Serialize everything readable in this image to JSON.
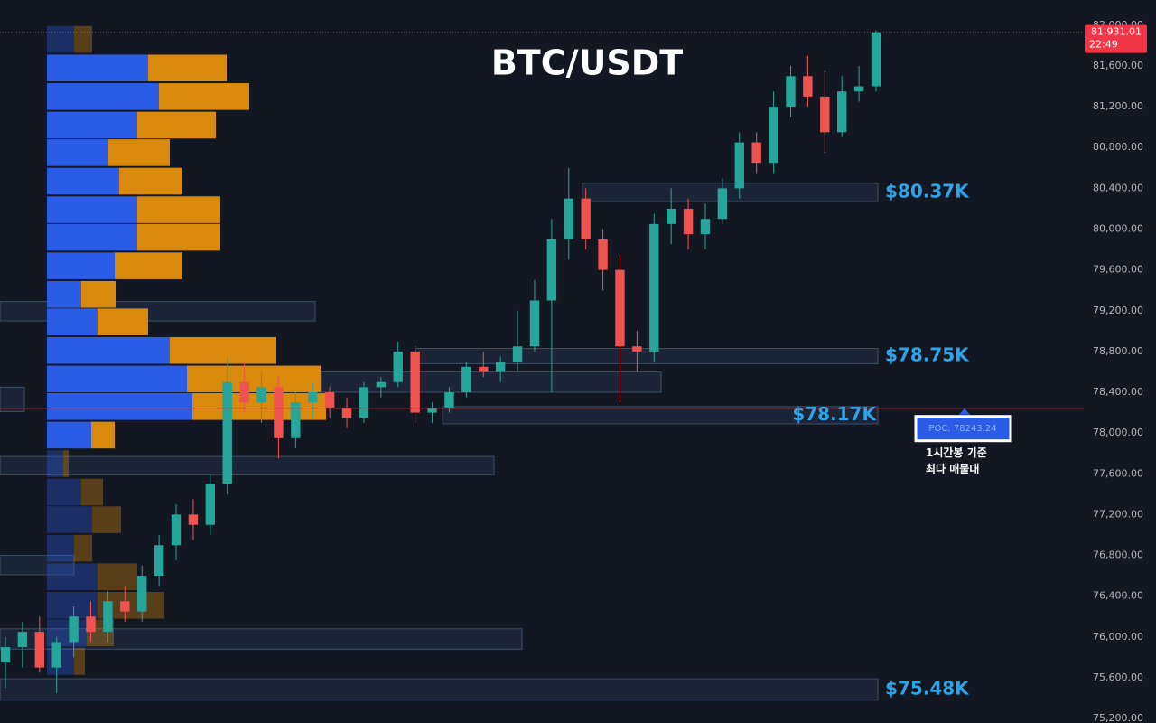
{
  "chart_data": {
    "type": "candlestick",
    "title": "BTC/USDT",
    "ylim": [
      75156,
      82247
    ],
    "yticks": [
      {
        "value": 75200,
        "label": "75,200.00"
      },
      {
        "value": 75600,
        "label": "75,600.00"
      },
      {
        "value": 76000,
        "label": "76,000.00"
      },
      {
        "value": 76400,
        "label": "76,400.00"
      },
      {
        "value": 76800,
        "label": "76,800.00"
      },
      {
        "value": 77200,
        "label": "77,200.00"
      },
      {
        "value": 77600,
        "label": "77,600.00"
      },
      {
        "value": 78000,
        "label": "78,000.00"
      },
      {
        "value": 78400,
        "label": "78,400.00"
      },
      {
        "value": 78800,
        "label": "78,800.00"
      },
      {
        "value": 79200,
        "label": "79,200.00"
      },
      {
        "value": 79600,
        "label": "79,600.00"
      },
      {
        "value": 80000,
        "label": "80,000.00"
      },
      {
        "value": 80400,
        "label": "80,400.00"
      },
      {
        "value": 80800,
        "label": "80,800.00"
      },
      {
        "value": 81200,
        "label": "81,200.00"
      },
      {
        "value": 81600,
        "label": "81,600.00"
      },
      {
        "value": 82000,
        "label": "82,000.00"
      }
    ],
    "grid": false,
    "up_color": "#26a69a",
    "down_color": "#ef5350",
    "open": [
      75750,
      75900,
      76050,
      75700,
      75950,
      76200,
      76050,
      76350,
      76250,
      76600,
      76900,
      77200,
      77100,
      77500,
      78500,
      78300,
      78450,
      77950,
      78300,
      78400,
      78250,
      78150,
      78450,
      78500,
      78800,
      78200,
      78250,
      78400,
      78650,
      78600,
      78700,
      78850,
      79300,
      79900,
      80300,
      79900,
      79600,
      78850,
      78800,
      80050,
      80200,
      79950,
      80100,
      80400,
      80850,
      80650,
      81200,
      81500,
      81300,
      80950,
      81350,
      81400
    ],
    "high": [
      76000,
      76150,
      76200,
      76000,
      76300,
      76350,
      76450,
      76500,
      76700,
      77000,
      77300,
      77350,
      77600,
      78750,
      78700,
      78600,
      78550,
      78400,
      78500,
      78450,
      78350,
      78500,
      78550,
      78900,
      78850,
      78300,
      78450,
      78700,
      78800,
      78750,
      79200,
      79500,
      80100,
      80600,
      80400,
      80000,
      79750,
      79000,
      80150,
      80400,
      80300,
      80250,
      80500,
      80950,
      80950,
      81350,
      81600,
      81700,
      81550,
      81500,
      81600,
      81950
    ],
    "low": [
      75500,
      75700,
      75650,
      75450,
      75800,
      75950,
      75950,
      76150,
      76150,
      76500,
      76750,
      76950,
      77000,
      77400,
      78200,
      78100,
      77750,
      77850,
      78150,
      78150,
      78050,
      78100,
      78350,
      78450,
      78100,
      78100,
      78200,
      78350,
      78550,
      78500,
      78600,
      78800,
      78400,
      79700,
      79800,
      79400,
      78300,
      78600,
      78700,
      79850,
      79800,
      79800,
      80050,
      80300,
      80550,
      80550,
      81100,
      81200,
      80750,
      80900,
      81250,
      81350
    ],
    "close": [
      75900,
      76050,
      75700,
      75950,
      76200,
      76050,
      76350,
      76250,
      76600,
      76900,
      77200,
      77100,
      77500,
      78500,
      78300,
      78450,
      77950,
      78300,
      78400,
      78250,
      78150,
      78450,
      78500,
      78800,
      78200,
      78250,
      78400,
      78650,
      78600,
      78700,
      78850,
      79300,
      79900,
      80300,
      79900,
      79600,
      78850,
      78800,
      80050,
      80200,
      79950,
      80100,
      80400,
      80850,
      80650,
      81200,
      81500,
      81300,
      80950,
      81350,
      81400,
      81931.01
    ],
    "last_price": {
      "value": 81931.01,
      "label": "81,931.01"
    },
    "last_time": "22:49",
    "poc": {
      "value": 78243.24,
      "label": "POC: 78243.24",
      "color": "#e53935"
    },
    "annotation": [
      "1시간봉 기준",
      "최다 매물대"
    ],
    "zones": [
      {
        "low": 80270,
        "high": 80450,
        "label": "$80.37K"
      },
      {
        "low": 78680,
        "high": 78830,
        "label": "$78.75K"
      },
      {
        "low": 78400,
        "high": 78600
      },
      {
        "low": 78090,
        "high": 78260,
        "label": "$78.17K"
      },
      {
        "low": 79100,
        "high": 79290
      },
      {
        "low": 77590,
        "high": 77770
      },
      {
        "low": 76610,
        "high": 76800
      },
      {
        "low": 75880,
        "high": 76080
      },
      {
        "low": 75380,
        "high": 75590,
        "label": "$75.48K"
      },
      {
        "low": 78210,
        "high": 78450
      }
    ],
    "volume_profile": {
      "levels": [
        81860,
        81580,
        81300,
        81020,
        80750,
        80470,
        80190,
        79920,
        79640,
        79360,
        79090,
        78810,
        78530,
        78260,
        77980,
        77700,
        77420,
        77150,
        76870,
        76590,
        76310,
        76040,
        75760
      ],
      "buy_volume": [
        30,
        112,
        124,
        100,
        68,
        80,
        100,
        100,
        75,
        38,
        56,
        136,
        155,
        161,
        49,
        18,
        38,
        50,
        30,
        56,
        56,
        44,
        30
      ],
      "sell_volume": [
        20,
        87,
        100,
        87,
        68,
        70,
        92,
        92,
        75,
        38,
        56,
        118,
        148,
        148,
        26,
        6,
        24,
        32,
        20,
        44,
        74,
        30,
        12
      ],
      "buy_color": "#2b5ce6",
      "sell_color": "#d98a0c",
      "value_area": [
        77850,
        81720
      ]
    }
  }
}
